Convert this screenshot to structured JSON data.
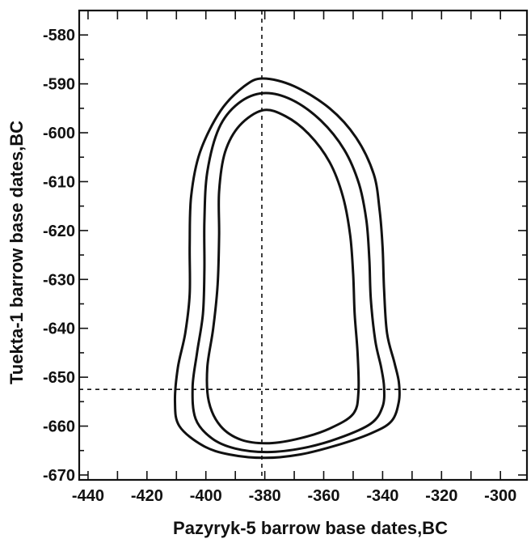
{
  "chart_data": {
    "type": "contour",
    "title": "",
    "xlabel": "Pazyryk-5 barrow base dates,BC",
    "ylabel": "Tuekta-1 barrow base dates,BC",
    "xlim": [
      -443,
      -291
    ],
    "ylim": [
      -671,
      -575
    ],
    "x_ticks": [
      -440,
      -420,
      -400,
      -380,
      -360,
      -340,
      -320,
      -300
    ],
    "y_ticks": [
      -580,
      -590,
      -600,
      -610,
      -620,
      -630,
      -640,
      -650,
      -660,
      -670
    ],
    "grid": false,
    "reference_lines": {
      "x": -381,
      "y": -652.5
    },
    "series": [
      {
        "points": [
          [
            -380.6,
            -588.9
          ],
          [
            -370,
            -590.5
          ],
          [
            -358,
            -595
          ],
          [
            -349,
            -601
          ],
          [
            -343,
            -608.5
          ],
          [
            -341,
            -616
          ],
          [
            -340,
            -623.5
          ],
          [
            -339.5,
            -632
          ],
          [
            -338.5,
            -641
          ],
          [
            -336,
            -647
          ],
          [
            -334.5,
            -651
          ],
          [
            -334.5,
            -655
          ],
          [
            -337,
            -659
          ],
          [
            -344,
            -661.5
          ],
          [
            -356,
            -664
          ],
          [
            -368,
            -665.8
          ],
          [
            -380,
            -666.5
          ],
          [
            -392,
            -665.8
          ],
          [
            -401,
            -664
          ],
          [
            -409,
            -660
          ],
          [
            -410.5,
            -655
          ],
          [
            -409.5,
            -648
          ],
          [
            -407,
            -641
          ],
          [
            -405.5,
            -633
          ],
          [
            -405.5,
            -623
          ],
          [
            -405,
            -613
          ],
          [
            -402,
            -604
          ],
          [
            -395,
            -595.5
          ],
          [
            -387,
            -590.5
          ]
        ]
      },
      {
        "points": [
          [
            -380.6,
            -591.9
          ],
          [
            -371,
            -593.2
          ],
          [
            -361,
            -597.5
          ],
          [
            -353,
            -603.5
          ],
          [
            -348,
            -610.5
          ],
          [
            -345.5,
            -618
          ],
          [
            -344.5,
            -626
          ],
          [
            -344,
            -634
          ],
          [
            -342.5,
            -642.5
          ],
          [
            -340.5,
            -648
          ],
          [
            -339.5,
            -652
          ],
          [
            -340,
            -656
          ],
          [
            -344,
            -659.5
          ],
          [
            -355,
            -662.5
          ],
          [
            -367,
            -664.5
          ],
          [
            -379,
            -665.3
          ],
          [
            -390,
            -664.6
          ],
          [
            -398,
            -662.5
          ],
          [
            -403.5,
            -658.5
          ],
          [
            -404.5,
            -652
          ],
          [
            -403,
            -645
          ],
          [
            -401,
            -637
          ],
          [
            -400.5,
            -628
          ],
          [
            -400.5,
            -618
          ],
          [
            -399.5,
            -608
          ],
          [
            -395.5,
            -599
          ],
          [
            -389,
            -594
          ]
        ]
      },
      {
        "points": [
          [
            -380.6,
            -595.4
          ],
          [
            -373,
            -596.6
          ],
          [
            -365,
            -600.3
          ],
          [
            -358,
            -606
          ],
          [
            -353.5,
            -613
          ],
          [
            -351,
            -621
          ],
          [
            -350,
            -629
          ],
          [
            -349.5,
            -637
          ],
          [
            -348.5,
            -645
          ],
          [
            -348.2,
            -653
          ],
          [
            -350,
            -657.5
          ],
          [
            -358,
            -660.5
          ],
          [
            -368,
            -662.5
          ],
          [
            -378.5,
            -663.5
          ],
          [
            -388,
            -662.8
          ],
          [
            -395,
            -660
          ],
          [
            -399,
            -655
          ],
          [
            -399.5,
            -648
          ],
          [
            -397.5,
            -640
          ],
          [
            -396,
            -631
          ],
          [
            -395.5,
            -621
          ],
          [
            -395.5,
            -612
          ],
          [
            -393.5,
            -604
          ],
          [
            -388.5,
            -598.5
          ]
        ]
      }
    ]
  }
}
